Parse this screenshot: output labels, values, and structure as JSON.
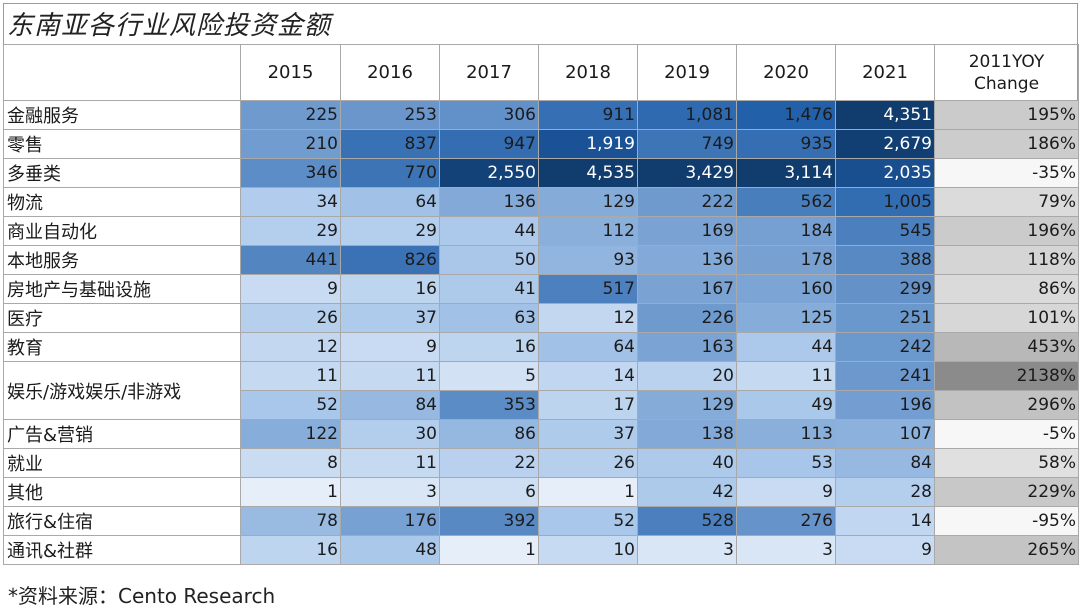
{
  "title": "东南亚各行业风险投资金额",
  "footer": "*资料来源：Cento Research",
  "chart_data": {
    "type": "table",
    "title": "东南亚各行业风险投资金额",
    "columns": [
      "2015",
      "2016",
      "2017",
      "2018",
      "2019",
      "2020",
      "2021"
    ],
    "yoy_header_line1": "2011YOY",
    "yoy_header_line2": "Change",
    "rows": [
      {
        "label": "金融服务",
        "values": [
          "225",
          "253",
          "306",
          "911",
          "1,081",
          "1,476",
          "4,351"
        ],
        "yoy": "195%"
      },
      {
        "label": "零售",
        "values": [
          "210",
          "837",
          "947",
          "1,919",
          "749",
          "935",
          "2,679"
        ],
        "yoy": "186%"
      },
      {
        "label": "多垂类",
        "values": [
          "346",
          "770",
          "2,550",
          "4,535",
          "3,429",
          "3,114",
          "2,035"
        ],
        "yoy": "-35%"
      },
      {
        "label": "物流",
        "values": [
          "34",
          "64",
          "136",
          "129",
          "222",
          "562",
          "1,005"
        ],
        "yoy": "79%"
      },
      {
        "label": "商业自动化",
        "values": [
          "29",
          "29",
          "44",
          "112",
          "169",
          "184",
          "545"
        ],
        "yoy": "196%"
      },
      {
        "label": "本地服务",
        "values": [
          "441",
          "826",
          "50",
          "93",
          "136",
          "178",
          "388"
        ],
        "yoy": "118%"
      },
      {
        "label": "房地产与基础设施",
        "values": [
          "9",
          "16",
          "41",
          "517",
          "167",
          "160",
          "299"
        ],
        "yoy": "86%"
      },
      {
        "label": "医疗",
        "values": [
          "26",
          "37",
          "63",
          "12",
          "226",
          "125",
          "251"
        ],
        "yoy": "101%"
      },
      {
        "label": "教育",
        "values": [
          "12",
          "9",
          "16",
          "64",
          "163",
          "44",
          "242"
        ],
        "yoy": "453%"
      },
      {
        "label": "娱乐/游戏娱乐/非游戏",
        "values": [
          "11",
          "11",
          "5",
          "14",
          "20",
          "11",
          "241"
        ],
        "yoy": "2138%"
      },
      {
        "label": "",
        "values": [
          "52",
          "84",
          "353",
          "17",
          "129",
          "49",
          "196"
        ],
        "yoy": "296%"
      },
      {
        "label": "广告&营销",
        "values": [
          "122",
          "30",
          "86",
          "37",
          "138",
          "113",
          "107"
        ],
        "yoy": "-5%"
      },
      {
        "label": "就业",
        "values": [
          "8",
          "11",
          "22",
          "26",
          "40",
          "53",
          "84"
        ],
        "yoy": "58%"
      },
      {
        "label": "其他",
        "values": [
          "1",
          "3",
          "6",
          "1",
          "42",
          "9",
          "28"
        ],
        "yoy": "229%"
      },
      {
        "label": "旅行&住宿",
        "values": [
          "78",
          "176",
          "392",
          "52",
          "528",
          "276",
          "14"
        ],
        "yoy": "-95%"
      },
      {
        "label": "通讯&社群",
        "values": [
          "16",
          "48",
          "1",
          "10",
          "3",
          "3",
          "9"
        ],
        "yoy": "265%"
      }
    ],
    "merged_label_rows": [
      9,
      10
    ],
    "color_scale": {
      "low": "#f3f7fc",
      "mid": "#a9c7ea",
      "high": "#1f5da8",
      "top": "#103c6e"
    },
    "yoy_color_scale": {
      "low": "#ffffff",
      "high": "#8a8a8a"
    }
  }
}
